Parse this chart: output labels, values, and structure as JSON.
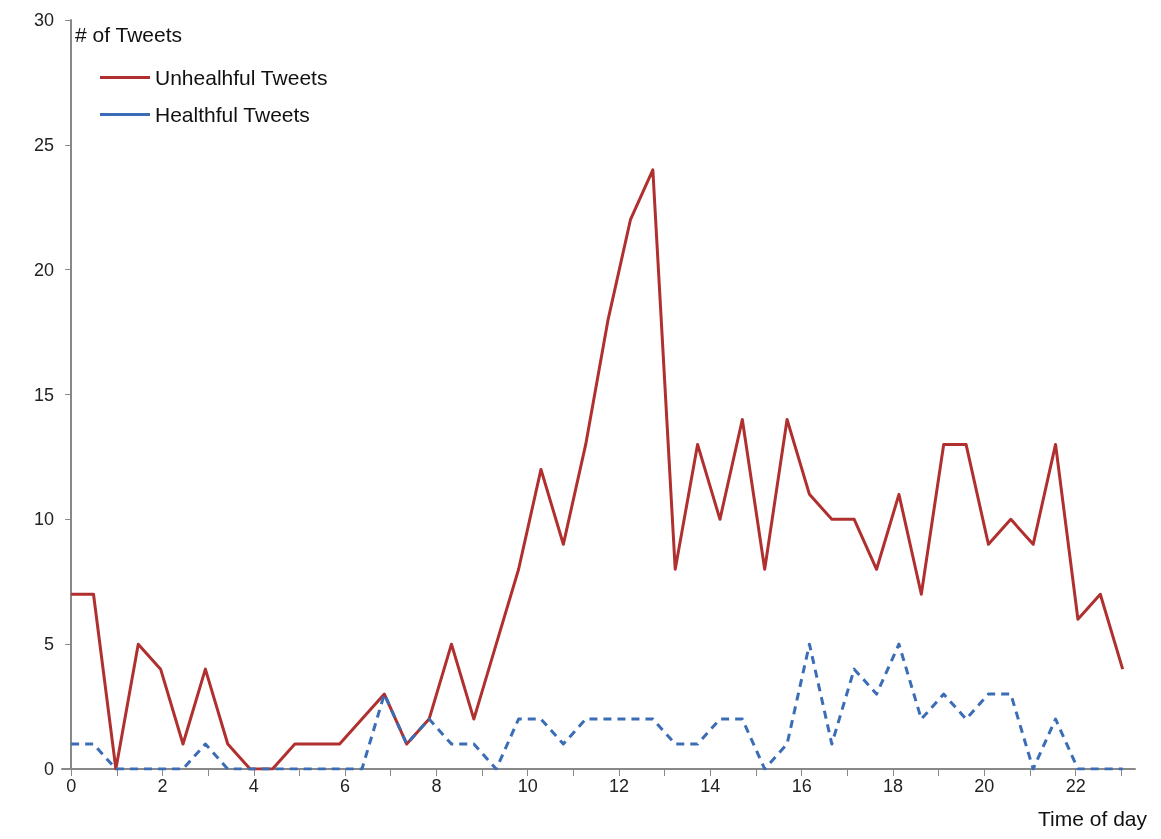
{
  "chart_data": {
    "type": "line",
    "xlabel": "Time of day",
    "ylabel": "# of Tweets",
    "x": [
      0,
      0.49,
      0.98,
      1.47,
      1.96,
      2.45,
      2.94,
      3.43,
      3.92,
      4.41,
      4.9,
      5.39,
      5.88,
      6.37,
      6.86,
      7.35,
      7.84,
      8.33,
      8.82,
      9.31,
      9.8,
      10.29,
      10.78,
      11.27,
      11.76,
      12.25,
      12.74,
      13.23,
      13.72,
      14.21,
      14.7,
      15.19,
      15.68,
      16.17,
      16.66,
      17.15,
      17.64,
      18.13,
      18.62,
      19.11,
      19.6,
      20.09,
      20.58,
      21.07,
      21.56,
      22.05,
      22.54,
      23.03
    ],
    "series": [
      {
        "name": "Unhealhful Tweets",
        "color": "#b0302f",
        "line_style": "solid",
        "values": [
          7,
          7,
          0,
          5,
          4,
          1,
          4,
          1,
          0,
          0,
          1,
          1,
          1,
          2,
          3,
          1,
          2,
          5,
          2,
          5,
          8,
          12,
          9,
          13,
          18,
          22,
          24,
          8,
          13,
          10,
          14,
          8,
          14,
          11,
          10,
          10,
          8,
          11,
          7,
          13,
          13,
          9,
          10,
          9,
          13,
          6,
          7,
          4
        ]
      },
      {
        "name": "Healthful Tweets",
        "color": "#3a6db5",
        "line_style": "dashed",
        "values": [
          1,
          1,
          0,
          0,
          0,
          0,
          1,
          0,
          0,
          0,
          0,
          0,
          0,
          0,
          3,
          1,
          2,
          1,
          1,
          0,
          2,
          2,
          1,
          2,
          2,
          2,
          2,
          1,
          1,
          2,
          2,
          0,
          1,
          5,
          1,
          4,
          3,
          5,
          2,
          3,
          2,
          3,
          3,
          0,
          2,
          0,
          0,
          0
        ]
      }
    ],
    "xlim": [
      -0.2,
      23.3
    ],
    "xticks": [
      0,
      {
        "value": 1,
        "label": null
      },
      2,
      {
        "value": 3,
        "label": null
      },
      4,
      {
        "value": 5,
        "label": null
      },
      6,
      {
        "value": 7,
        "label": null
      },
      8,
      {
        "value": 9,
        "label": null
      },
      10,
      {
        "value": 11,
        "label": null
      },
      12,
      {
        "value": 13,
        "label": null
      },
      14,
      {
        "value": 15,
        "label": null
      },
      16,
      {
        "value": 17,
        "label": null
      },
      18,
      {
        "value": 19,
        "label": null
      },
      20,
      {
        "value": 21,
        "label": null
      },
      22,
      {
        "value": 23,
        "label": null
      }
    ],
    "ylim": [
      0,
      30
    ],
    "yticks": [
      0,
      5,
      10,
      15,
      20,
      25,
      30
    ],
    "grid": false,
    "legend": "top left",
    "marker": "none"
  }
}
